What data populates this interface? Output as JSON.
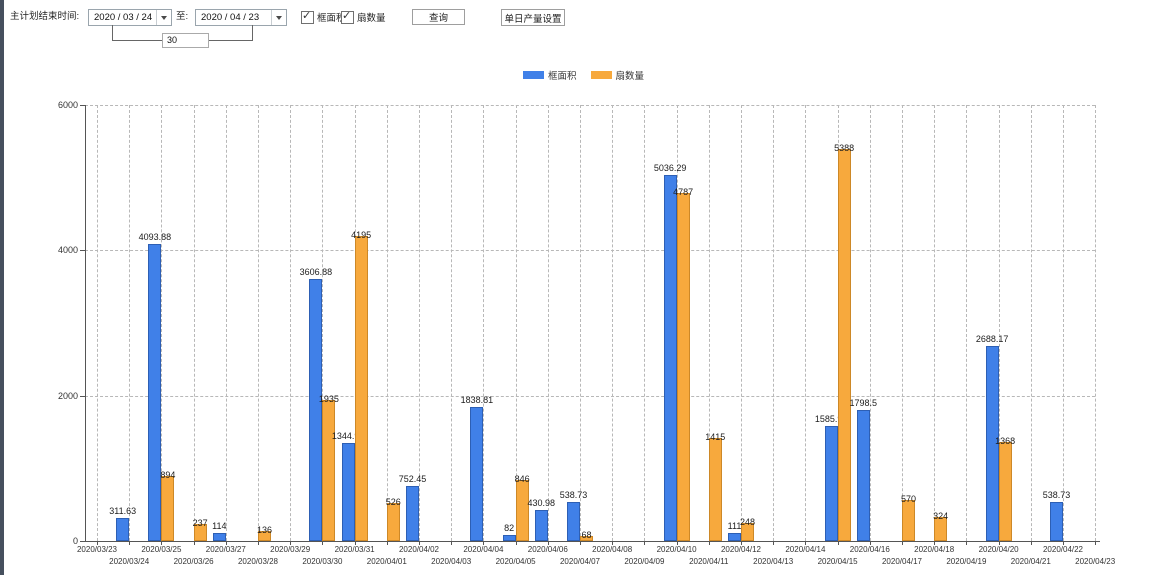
{
  "toolbar": {
    "plan_end_label": "主计划结束时间:",
    "date_from": "2020 / 03 / 24",
    "to_label": "至:",
    "date_to": "2020 / 04 / 23",
    "interval_value": "30",
    "checkbox_frame_area": {
      "label": "框面积",
      "checked": true
    },
    "checkbox_sash_count": {
      "label": "扇数量",
      "checked": true
    },
    "query_button": "查询",
    "daily_output_button": "单日产量设置"
  },
  "legend": [
    {
      "name": "框面积",
      "color": "#4080e8"
    },
    {
      "name": "扇数量",
      "color": "#f7a93d"
    }
  ],
  "chart_data": {
    "type": "bar",
    "title": "",
    "xlabel": "",
    "ylabel": "",
    "ylim": [
      0,
      6000
    ],
    "yticks": [
      0,
      2000,
      4000,
      6000
    ],
    "grid": true,
    "legend_position": "top-center",
    "categories": [
      "2020/03/23",
      "2020/03/24",
      "2020/03/25",
      "2020/03/26",
      "2020/03/27",
      "2020/03/28",
      "2020/03/29",
      "2020/03/30",
      "2020/03/31",
      "2020/04/01",
      "2020/04/02",
      "2020/04/03",
      "2020/04/04",
      "2020/04/05",
      "2020/04/06",
      "2020/04/07",
      "2020/04/08",
      "2020/04/09",
      "2020/04/10",
      "2020/04/11",
      "2020/04/12",
      "2020/04/13",
      "2020/04/14",
      "2020/04/15",
      "2020/04/16",
      "2020/04/17",
      "2020/04/18",
      "2020/04/19",
      "2020/04/20",
      "2020/04/21",
      "2020/04/22",
      "2020/04/23"
    ],
    "series": [
      {
        "name": "框面积",
        "color": "#4080e8",
        "values": [
          null,
          311.63,
          4093.88,
          null,
          114,
          null,
          null,
          3606.88,
          1344.95,
          null,
          752.45,
          null,
          1838.81,
          82,
          430.98,
          538.73,
          null,
          null,
          5036.29,
          null,
          111,
          null,
          null,
          1585.96,
          1798.5,
          null,
          null,
          null,
          2688.17,
          null,
          538.73,
          null
        ]
      },
      {
        "name": "扇数量",
        "color": "#f7a93d",
        "values": [
          null,
          null,
          894,
          237,
          null,
          136,
          null,
          1935,
          4195,
          526,
          null,
          null,
          null,
          846,
          null,
          68,
          null,
          null,
          4787,
          1415,
          248,
          null,
          null,
          5388,
          null,
          570,
          324,
          null,
          1368,
          null,
          null,
          null
        ]
      }
    ]
  }
}
